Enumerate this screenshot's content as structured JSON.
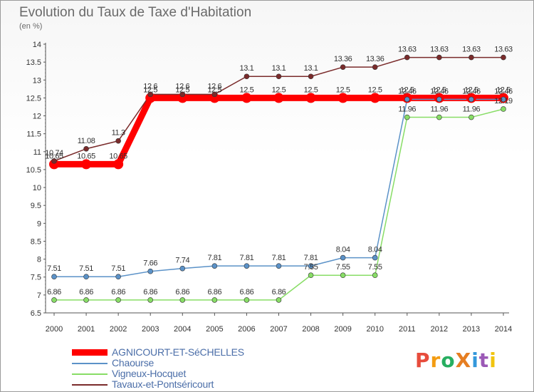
{
  "title": "Evolution du Taux de Taxe d'Habitation",
  "unit": "(en %)",
  "logo": {
    "text": "ProXiti",
    "colors": [
      "#e74c3c",
      "#f39c12",
      "#27ae60",
      "#e67e22",
      "#3498db",
      "#9b59b6",
      "#f1c40f"
    ]
  },
  "chart_data": {
    "type": "line",
    "x": [
      "2000",
      "2001",
      "2002",
      "2003",
      "2004",
      "2005",
      "2006",
      "2007",
      "2008",
      "2009",
      "2010",
      "2011",
      "2012",
      "2013",
      "2014"
    ],
    "ylim": [
      6.5,
      14
    ],
    "yticks": [
      "6.5",
      "7",
      "7.5",
      "8",
      "8.5",
      "9",
      "9.5",
      "10",
      "10.5",
      "11",
      "11.5",
      "12",
      "12.5",
      "13",
      "13.5",
      "14"
    ],
    "grid": false,
    "legend_position": "bottom-left",
    "series": [
      {
        "name": "AGNICOURT-ET-SéCHELLES",
        "color": "#ff0000",
        "width": 9,
        "marker": 7,
        "values": [
          10.65,
          10.65,
          10.65,
          12.5,
          12.5,
          12.5,
          12.5,
          12.5,
          12.5,
          12.5,
          12.5,
          12.5,
          12.5,
          12.5,
          12.5
        ],
        "labels": [
          "10.65",
          "10.65",
          "10.65",
          "12.5",
          "12.5",
          "12.5",
          "12.5",
          "12.5",
          "12.5",
          "12.5",
          "12.5",
          "12.5",
          "12.5",
          "12.5",
          "12.5"
        ]
      },
      {
        "name": "Chaourse",
        "color": "#5b92c8",
        "width": 1.5,
        "marker": 3.5,
        "values": [
          7.51,
          7.51,
          7.51,
          7.66,
          7.74,
          7.81,
          7.81,
          7.81,
          7.81,
          8.04,
          8.04,
          12.46,
          12.46,
          12.46,
          12.46
        ],
        "labels": [
          "7.51",
          "7.51",
          "7.51",
          "7.66",
          "7.74",
          "7.81",
          "7.81",
          "7.81",
          "7.81",
          "8.04",
          "8.04",
          "12.46",
          "12.46",
          "12.46",
          "12.46"
        ]
      },
      {
        "name": "Vigneux-Hocquet",
        "color": "#88dd66",
        "width": 1.5,
        "marker": 3.5,
        "values": [
          6.86,
          6.86,
          6.86,
          6.86,
          6.86,
          6.86,
          6.86,
          6.86,
          7.55,
          7.55,
          7.55,
          11.96,
          11.96,
          11.96,
          12.19
        ],
        "labels": [
          "6.86",
          "6.86",
          "6.86",
          "6.86",
          "6.86",
          "6.86",
          "6.86",
          "6.86",
          "7.55",
          "7.55",
          "7.55",
          "11.96",
          "11.96",
          "11.96",
          "12.19"
        ]
      },
      {
        "name": "Tavaux-et-Pontséricourt",
        "color": "#7a2b2b",
        "width": 1.5,
        "marker": 3.5,
        "values": [
          10.74,
          11.08,
          11.3,
          12.6,
          12.6,
          12.6,
          13.1,
          13.1,
          13.1,
          13.36,
          13.36,
          13.63,
          13.63,
          13.63,
          13.63
        ],
        "labels": [
          "10.74",
          "11.08",
          "11.3",
          "12.6",
          "12.6",
          "12.6",
          "13.1",
          "13.1",
          "13.1",
          "13.36",
          "13.36",
          "13.63",
          "13.63",
          "13.63",
          "13.63"
        ]
      }
    ]
  }
}
